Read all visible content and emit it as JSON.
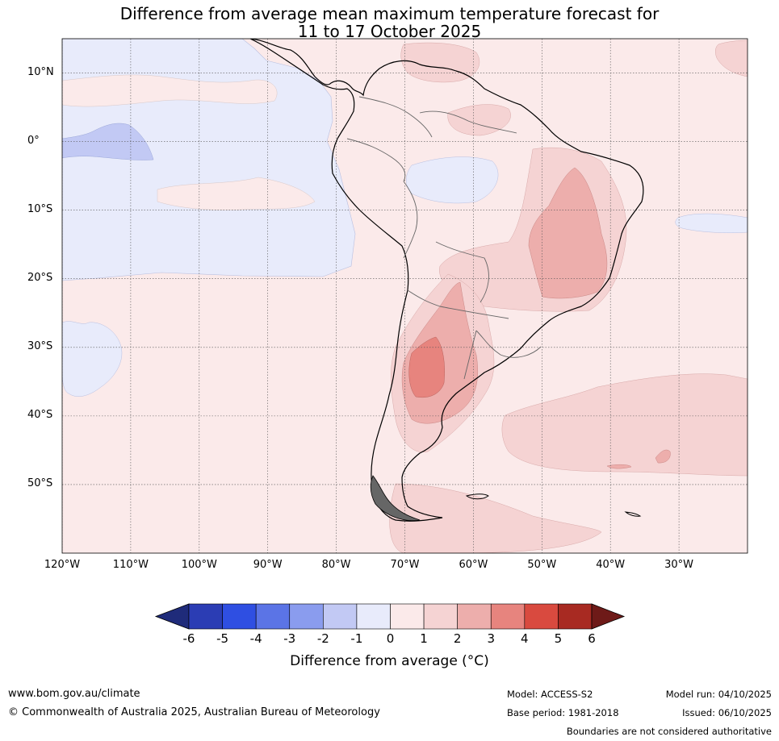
{
  "title": {
    "line1": "Difference from average mean maximum temperature forecast for",
    "line2": "11 to 17 October 2025"
  },
  "map": {
    "lat_labels": [
      "10°N",
      "0°",
      "10°S",
      "20°S",
      "30°S",
      "40°S",
      "50°S"
    ],
    "lon_labels": [
      "120°W",
      "110°W",
      "100°W",
      "90°W",
      "80°W",
      "70°W",
      "60°W",
      "50°W",
      "40°W",
      "30°W"
    ],
    "lat_values": [
      10,
      0,
      -10,
      -20,
      -30,
      -40,
      -50
    ],
    "lon_values": [
      -120,
      -110,
      -100,
      -90,
      -80,
      -70,
      -60,
      -50,
      -40,
      -30
    ],
    "extent": {
      "lon_min": -120,
      "lon_max": -20,
      "lat_min": -60,
      "lat_max": 15
    }
  },
  "colorbar": {
    "ticks": [
      "-6",
      "-5",
      "-4",
      "-3",
      "-2",
      "-1",
      "0",
      "1",
      "2",
      "3",
      "4",
      "5",
      "6"
    ],
    "colors": [
      "#1f2b7a",
      "#2b3db4",
      "#2f4fe2",
      "#5b74e6",
      "#8a9cee",
      "#c2c9f4",
      "#e8ebfb",
      "#fbeaea",
      "#f5d3d3",
      "#edaeac",
      "#e7847e",
      "#d94a3f",
      "#a82a22",
      "#6e1a18"
    ],
    "label": "Difference from average (°C)"
  },
  "footer": {
    "url": "www.bom.gov.au/climate",
    "copyright": "© Commonwealth of Australia 2025, Australian Bureau of Meteorology",
    "model": "Model: ACCESS-S2",
    "base_period": "Base period: 1981-2018",
    "model_run": "Model run: 04/10/2025",
    "issued": "Issued: 06/10/2025",
    "disclaimer": "Boundaries are not considered authoritative"
  }
}
